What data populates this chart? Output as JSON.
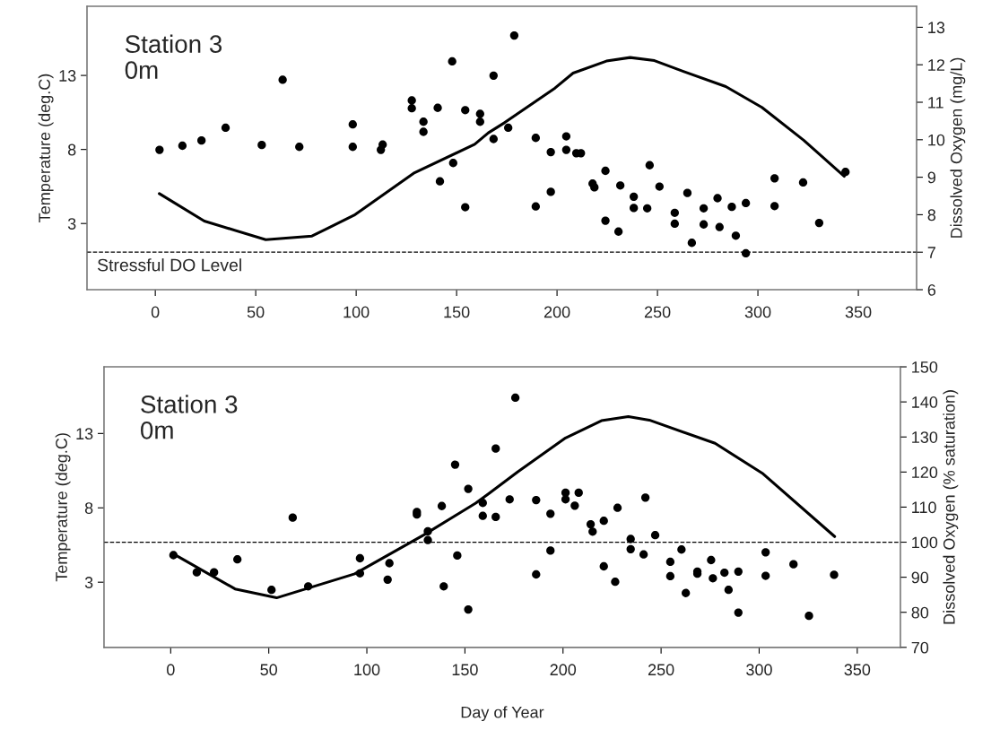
{
  "chart_data": [
    {
      "type": "line",
      "ylabel": "Temperature (deg.C)",
      "y2label": "Dissolved Oxygen (mg/L)",
      "annotations": [
        "Station 3\n0m"
      ],
      "xlim": [
        -34,
        379
      ],
      "xticks": [
        0,
        50,
        100,
        150,
        200,
        250,
        300,
        350
      ],
      "ylim": [
        -1.47,
        17.67
      ],
      "yticks": [
        3,
        8,
        13
      ],
      "y2lim": [
        6,
        13.56
      ],
      "y2ticks": [
        6,
        7,
        8,
        9,
        10,
        11,
        12,
        13
      ],
      "grid": false,
      "ref_lines": [
        {
          "axis": "y2",
          "value": 7,
          "label": "Stressful DO Level",
          "line_style": "dashed",
          "color": "#000000"
        }
      ],
      "series": [
        {
          "color": "#000000",
          "line_style": "solid",
          "marker": "none",
          "x": [
            2,
            24.4,
            55,
            78,
            99,
            128.6,
            159,
            165.8,
            174,
            199,
            208,
            224.6,
            236.4,
            248.5,
            263.2,
            284,
            302,
            322.8,
            343
          ],
          "values": [
            5.02,
            3.16,
            1.91,
            2.15,
            3.56,
            6.39,
            8.35,
            9.12,
            9.82,
            12.15,
            13.16,
            13.97,
            14.21,
            14.0,
            13.26,
            12.25,
            10.84,
            8.62,
            6.19
          ]
        },
        {
          "type": "scatter",
          "axis": "y2",
          "color": "#000000",
          "marker": "circle",
          "x": [
            2.1,
            13.5,
            23,
            35,
            53,
            63.4,
            71.7,
            98.3,
            98.3,
            112.3,
            113.2,
            127.7,
            127.7,
            133.5,
            133.5,
            140.6,
            141.7,
            147.8,
            148.3,
            154.3,
            154.3,
            161.7,
            161.7,
            168.4,
            168.4,
            178.7,
            175.7,
            189.4,
            189.4,
            196.9,
            196.9,
            204.6,
            204.6,
            209.6,
            211.9,
            217.7,
            218.6,
            224.1,
            224.1,
            231.5,
            230.6,
            238.2,
            238.2,
            244.9,
            246.1,
            251,
            258.6,
            258.6,
            264.9,
            267.1,
            273,
            273,
            279.9,
            280.9,
            287,
            289,
            294,
            294,
            308.3,
            308.3,
            322.5,
            330.5,
            343.6
          ],
          "values": [
            9.73,
            9.84,
            9.98,
            10.32,
            9.86,
            11.6,
            9.81,
            10.41,
            9.81,
            9.73,
            9.87,
            11.05,
            10.84,
            10.48,
            10.21,
            10.85,
            8.89,
            12.09,
            9.38,
            10.79,
            8.2,
            10.69,
            10.48,
            11.71,
            10.02,
            12.78,
            10.32,
            10.05,
            8.22,
            9.67,
            8.61,
            10.09,
            9.73,
            9.64,
            9.64,
            8.83,
            8.73,
            9.17,
            7.84,
            8.78,
            7.55,
            8.48,
            8.18,
            8.17,
            9.32,
            8.75,
            8.05,
            7.76,
            8.58,
            7.25,
            8.17,
            7.74,
            8.44,
            7.67,
            8.21,
            7.44,
            8.31,
            6.97,
            8.97,
            8.23,
            8.86,
            7.78,
            9.14
          ]
        }
      ]
    },
    {
      "type": "line",
      "xlabel": "Day of Year",
      "ylabel": "Temperature (deg.C)",
      "y2label": "Dissolved Oxygen (% saturation)",
      "annotations": [
        "Station 3\n0m"
      ],
      "xlim": [
        -34,
        372
      ],
      "xticks": [
        0,
        50,
        100,
        150,
        200,
        250,
        300,
        350
      ],
      "ylim": [
        -1.38,
        17.48
      ],
      "yticks": [
        3,
        8,
        13
      ],
      "y2lim": [
        70,
        150
      ],
      "y2ticks": [
        70,
        80,
        90,
        100,
        110,
        120,
        130,
        140,
        150
      ],
      "grid": false,
      "ref_lines": [
        {
          "axis": "y2",
          "value": 100,
          "line_style": "dashed",
          "color": "#000000"
        }
      ],
      "series": [
        {
          "color": "#000000",
          "line_style": "solid",
          "marker": "none",
          "x": [
            1.8,
            32.8,
            54,
            93.8,
            128.9,
            155.5,
            162.4,
            177,
            201.3,
            219.6,
            233.3,
            244,
            277.5,
            302,
            338.5
          ],
          "values": [
            4.87,
            2.55,
            1.95,
            3.56,
            6.17,
            8.32,
            8.98,
            10.43,
            12.7,
            13.86,
            14.14,
            13.9,
            12.34,
            10.29,
            6.07
          ]
        },
        {
          "type": "scatter",
          "axis": "y2",
          "color": "#000000",
          "marker": "circle",
          "x": [
            1.4,
            13.3,
            22.1,
            34,
            51.4,
            62.2,
            70.1,
            96.5,
            96.5,
            110.6,
            111.5,
            125.5,
            125.5,
            131.1,
            131.1,
            138.2,
            139.2,
            145,
            146.1,
            151.7,
            151.7,
            159.1,
            159.1,
            165.7,
            165.7,
            175.7,
            172.8,
            186.3,
            186.3,
            193.6,
            193.6,
            201.3,
            201.3,
            208,
            206,
            214.1,
            215.1,
            220.8,
            227.8,
            220.8,
            226.6,
            234.5,
            234.5,
            242,
            241.1,
            247,
            254.7,
            254.7,
            260.4,
            262.6,
            268.5,
            268.5,
            275.5,
            276.4,
            282.3,
            284.4,
            289.4,
            289.4,
            303.3,
            303.3,
            317.5,
            325.4,
            338.2
          ],
          "values": [
            96.3,
            91.4,
            91.4,
            95.1,
            86.4,
            107,
            87.4,
            95.4,
            91.1,
            89.3,
            94,
            108.6,
            107.9,
            103.1,
            100.6,
            110.3,
            87.4,
            122.1,
            96.2,
            115.2,
            80.8,
            111.2,
            107.5,
            126.7,
            107.2,
            141.2,
            112.2,
            112,
            90.8,
            108.1,
            97.6,
            114.1,
            112.2,
            114.1,
            110.4,
            105.1,
            103,
            106.1,
            109.8,
            93.1,
            88.7,
            100.9,
            98,
            112.7,
            96.5,
            102,
            94.4,
            90.3,
            97.9,
            85.5,
            91.6,
            91,
            94.9,
            89.7,
            91.3,
            86.4,
            91.6,
            79.9,
            97.1,
            90.4,
            93.7,
            79,
            90.7
          ]
        }
      ]
    }
  ]
}
